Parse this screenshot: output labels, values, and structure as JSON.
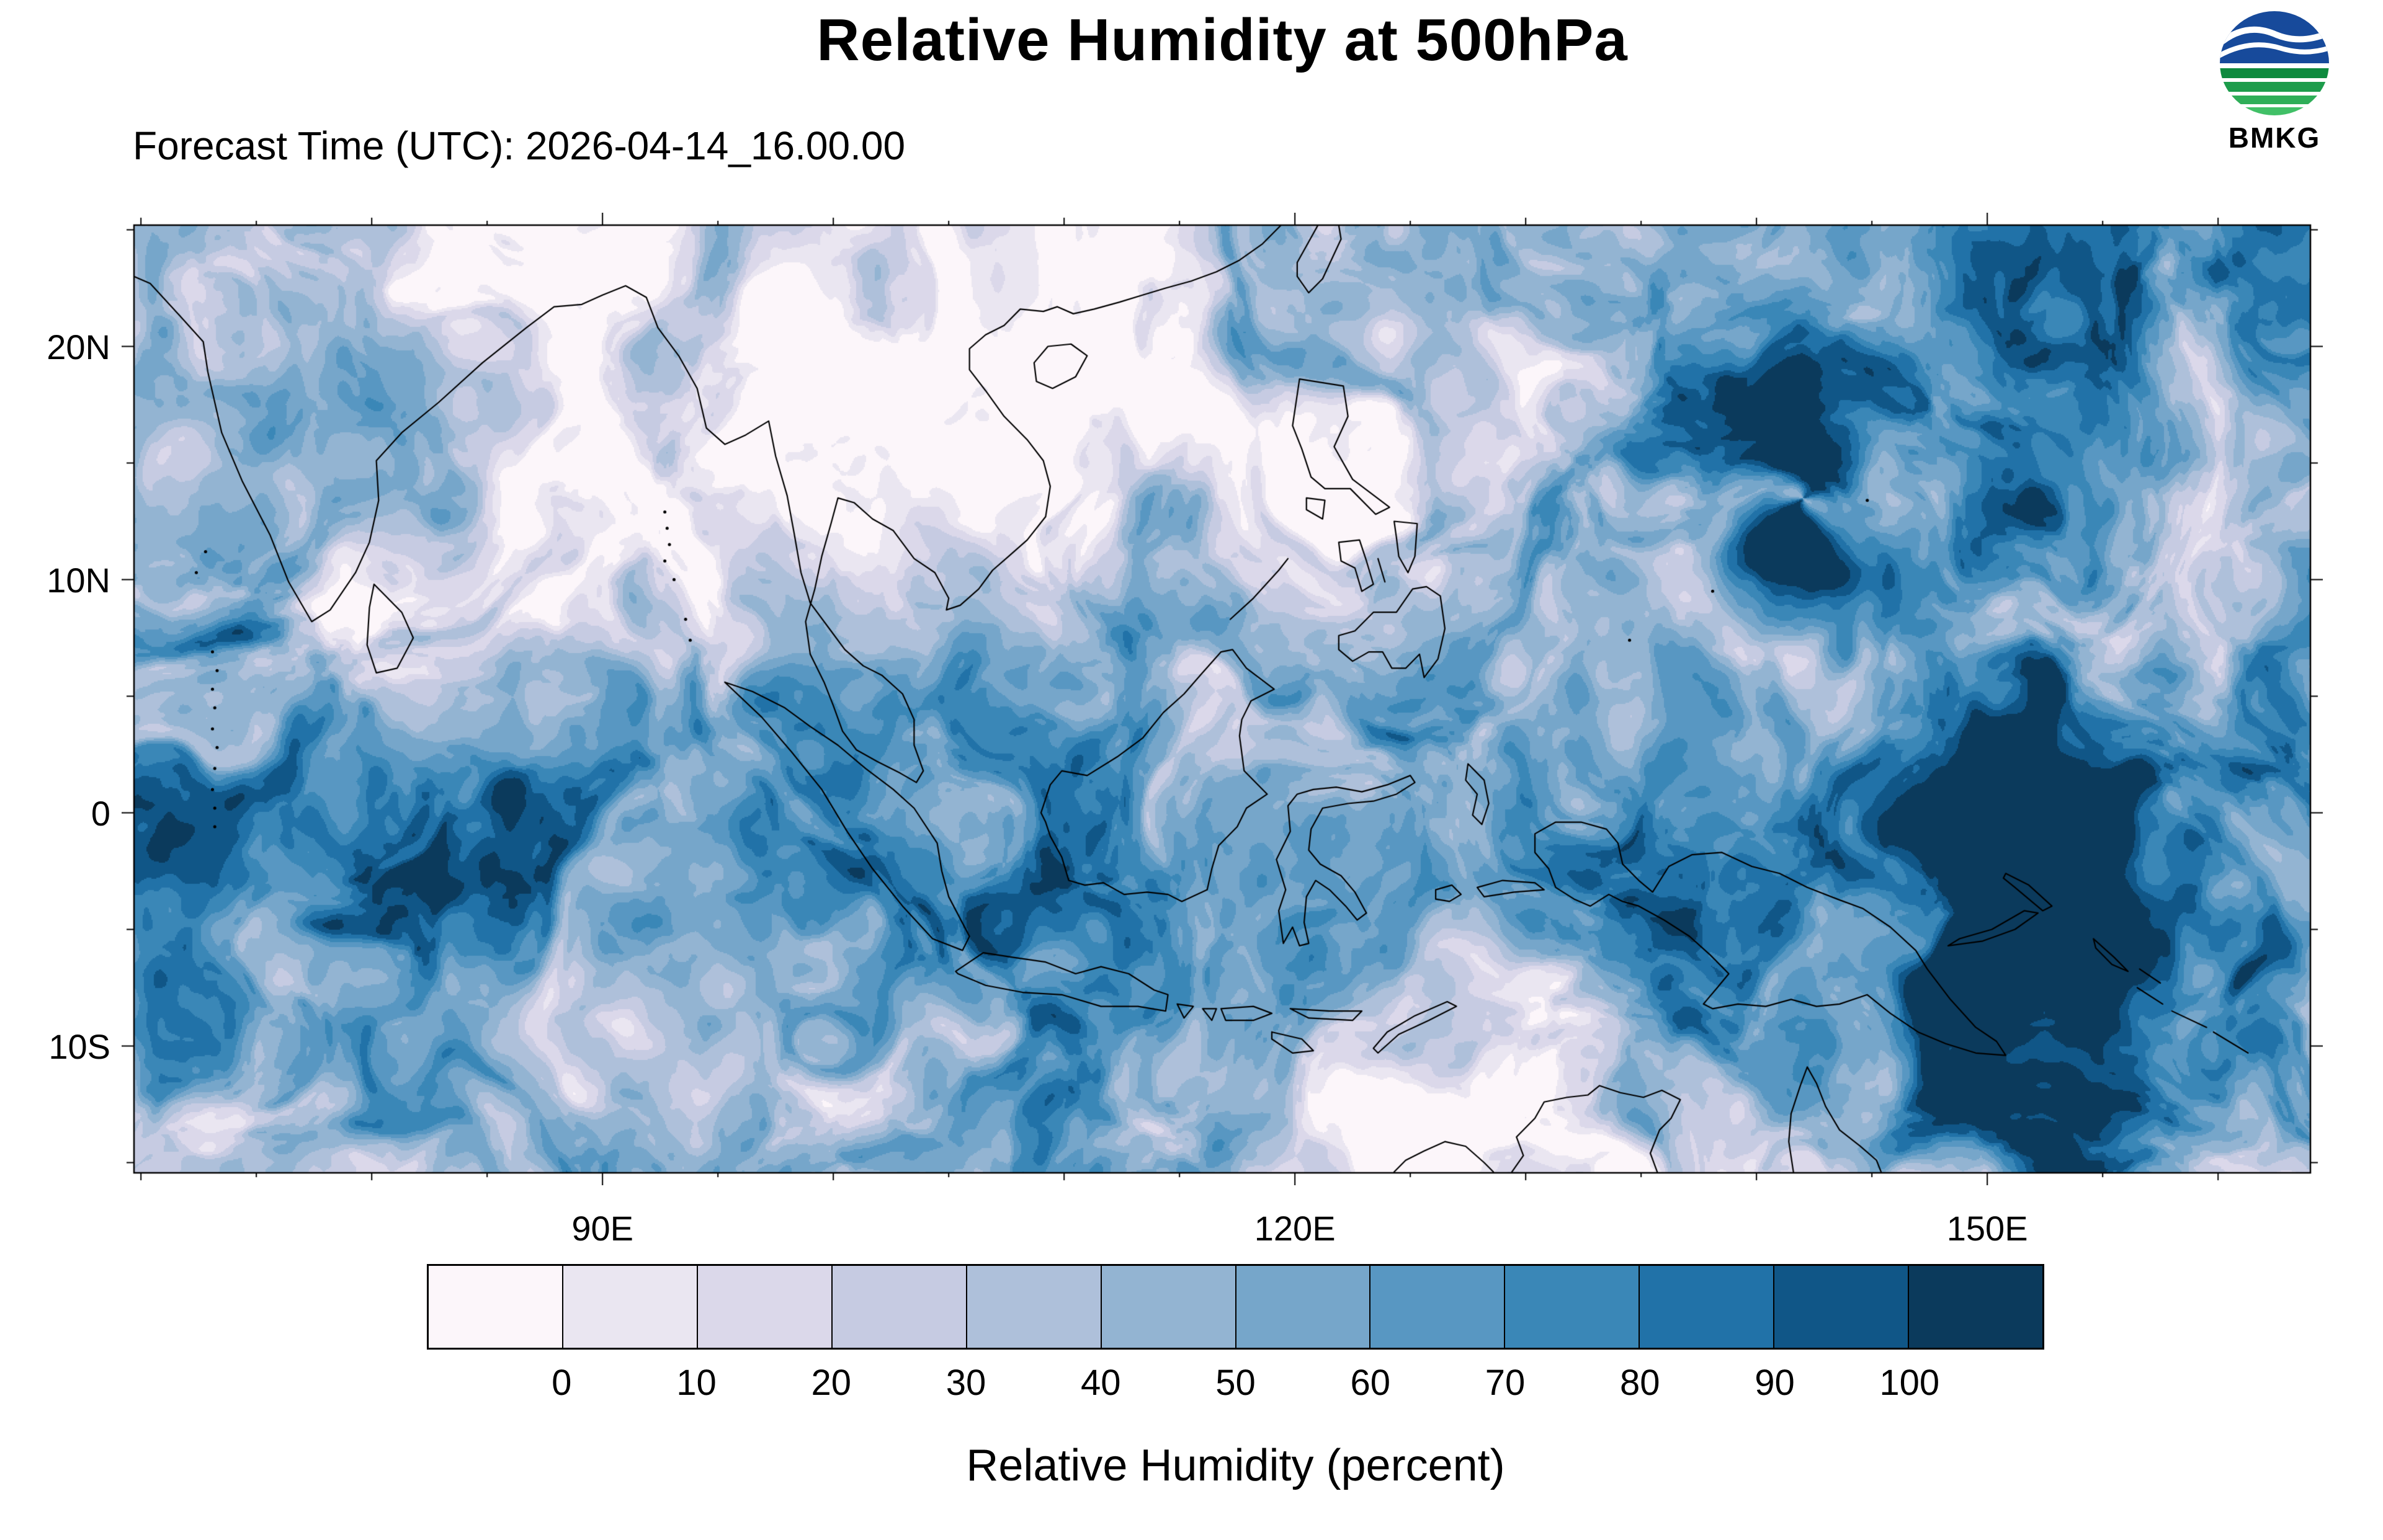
{
  "header": {
    "title": "Relative Humidity at 500hPa",
    "forecast_time": "Forecast Time (UTC): 2026-04-14_16.00.00"
  },
  "logo": {
    "text": "BMKG"
  },
  "chart_data": {
    "type": "heatmap",
    "title": "Relative Humidity at 500hPa",
    "subtitle": "Forecast Time (UTC): 2026-04-14_16.00.00",
    "variable": "Relative Humidity",
    "pressure_level": "500hPa",
    "forecast_time_utc": "2026-04-14_16.00.00",
    "units": "percent",
    "colorbar_title": "Relative Humidity (percent)",
    "levels": [
      0,
      10,
      20,
      30,
      40,
      50,
      60,
      70,
      80,
      90,
      100
    ],
    "colorbar_tick_labels": [
      "0",
      "10",
      "20",
      "30",
      "40",
      "50",
      "60",
      "70",
      "80",
      "90",
      "100"
    ],
    "palette": [
      "#fcf6fa",
      "#eae6f1",
      "#dbd8ea",
      "#c6cbe2",
      "#aec0da",
      "#93b4d2",
      "#76a6ca",
      "#5897c2",
      "#3a87b7",
      "#2172a8",
      "#105687",
      "#0b3a5c"
    ],
    "x_ticks": [
      {
        "label": "90E",
        "lon": 90
      },
      {
        "label": "120E",
        "lon": 120
      },
      {
        "label": "150E",
        "lon": 150
      }
    ],
    "y_ticks": [
      {
        "label": "20N",
        "lat": 20
      },
      {
        "label": "10N",
        "lat": 10
      },
      {
        "label": "0",
        "lat": 0
      },
      {
        "label": "10S",
        "lat": -10
      }
    ],
    "extent": {
      "lon_min": 69.7,
      "lon_max": 164.0,
      "lat_min": -15.4,
      "lat_max": 25.2
    },
    "legend_position": "bottom",
    "grid": false,
    "source": "BMKG"
  }
}
